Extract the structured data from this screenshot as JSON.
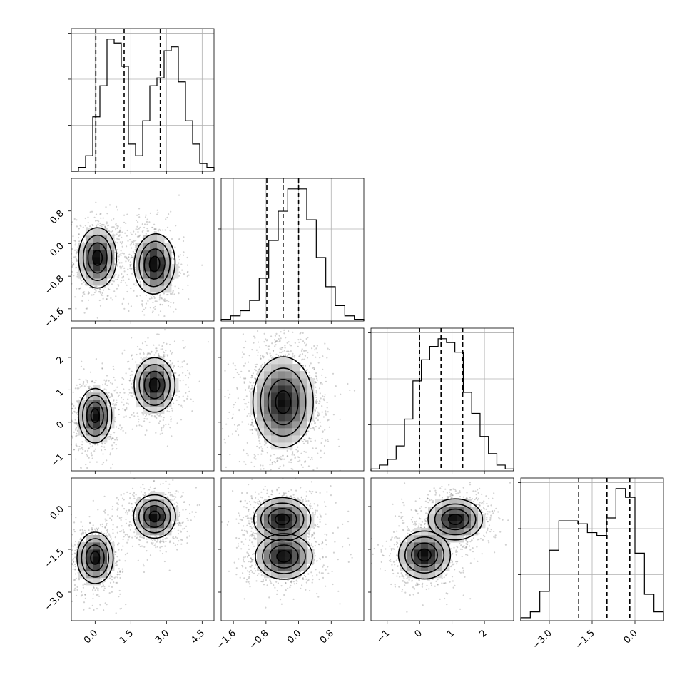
{
  "chart_data": {
    "type": "corner",
    "grid": true,
    "quantiles": [
      0.16,
      0.5,
      0.84
    ],
    "params": [
      {
        "range": [
          -1.0,
          5.0
        ],
        "ticks": [
          0.0,
          1.5,
          3.0,
          4.5
        ],
        "tick_labels": [
          "0.0",
          "1.5",
          "3.0",
          "4.5"
        ],
        "histogram": [
          0,
          1,
          4,
          14,
          22,
          34,
          33,
          27,
          7,
          4,
          13,
          22,
          24,
          31,
          32,
          23,
          13,
          7,
          2,
          1
        ],
        "quantile_values": [
          0.03,
          1.22,
          2.74
        ]
      },
      {
        "range": [
          -1.9,
          1.6
        ],
        "ticks": [
          -1.6,
          -0.8,
          0.0,
          0.8
        ],
        "tick_labels": [
          "−1.6",
          "−0.8",
          "0.0",
          "0.8"
        ],
        "histogram": [
          1,
          3,
          6,
          12,
          25,
          47,
          64,
          77,
          77,
          59,
          37,
          20,
          9,
          3,
          1
        ],
        "quantile_values": [
          -0.78,
          -0.38,
          0.0
        ]
      },
      {
        "range": [
          -1.5,
          2.9
        ],
        "ticks": [
          -1,
          0,
          1,
          2
        ],
        "tick_labels": [
          "−1",
          "0",
          "1",
          "2"
        ],
        "histogram": [
          1,
          3,
          6,
          13,
          27,
          47,
          58,
          65,
          69,
          67,
          62,
          41,
          30,
          18,
          9,
          3,
          1
        ],
        "quantile_values": [
          0.0,
          0.66,
          1.33
        ]
      },
      {
        "range": [
          -4.0,
          1.0
        ],
        "ticks": [
          -3.0,
          -1.5,
          0.0
        ],
        "tick_labels": [
          "−3.0",
          "−1.5",
          "0.0"
        ],
        "histogram": [
          1,
          3,
          10,
          24,
          34,
          34,
          33,
          30,
          29,
          35,
          45,
          42,
          23,
          9,
          3
        ],
        "quantile_values": [
          -1.97,
          -0.98,
          -0.18
        ]
      }
    ],
    "pairs": [
      {
        "x": 0,
        "y": 1,
        "clusters": [
          {
            "mx": 0.1,
            "my": -0.35,
            "sx": 0.4,
            "sy": 0.37,
            "rho": 0.0,
            "w": 0.5
          },
          {
            "mx": 2.5,
            "my": -0.5,
            "sx": 0.43,
            "sy": 0.37,
            "rho": -0.15,
            "w": 0.5
          }
        ]
      },
      {
        "x": 0,
        "y": 2,
        "clusters": [
          {
            "mx": 0.0,
            "my": 0.2,
            "sx": 0.35,
            "sy": 0.42,
            "rho": 0.0,
            "w": 0.5
          },
          {
            "mx": 2.5,
            "my": 1.15,
            "sx": 0.43,
            "sy": 0.42,
            "rho": 0.0,
            "w": 0.5
          }
        ]
      },
      {
        "x": 0,
        "y": 3,
        "clusters": [
          {
            "mx": 0.0,
            "my": -1.8,
            "sx": 0.38,
            "sy": 0.45,
            "rho": 0.0,
            "w": 0.5
          },
          {
            "mx": 2.5,
            "my": -0.35,
            "sx": 0.44,
            "sy": 0.38,
            "rho": 0.0,
            "w": 0.5
          }
        ]
      },
      {
        "x": 1,
        "y": 2,
        "clusters": [
          {
            "mx": -0.38,
            "my": 0.62,
            "sx": 0.37,
            "sy": 0.7,
            "rho": 0.0,
            "w": 1.0
          }
        ]
      },
      {
        "x": 1,
        "y": 3,
        "clusters": [
          {
            "mx": -0.4,
            "my": -0.45,
            "sx": 0.35,
            "sy": 0.38,
            "rho": 0.0,
            "w": 0.5
          },
          {
            "mx": -0.36,
            "my": -1.75,
            "sx": 0.35,
            "sy": 0.4,
            "rho": 0.0,
            "w": 0.5
          }
        ]
      },
      {
        "x": 2,
        "y": 3,
        "clusters": [
          {
            "mx": 0.15,
            "my": -1.7,
            "sx": 0.4,
            "sy": 0.42,
            "rho": 0.0,
            "w": 0.5
          },
          {
            "mx": 1.1,
            "my": -0.45,
            "sx": 0.42,
            "sy": 0.36,
            "rho": 0.0,
            "w": 0.5
          }
        ]
      }
    ]
  }
}
